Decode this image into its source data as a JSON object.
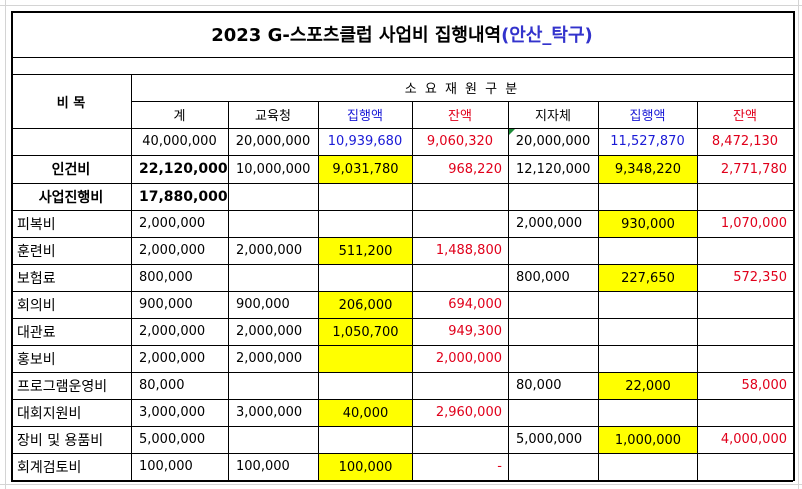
{
  "title": {
    "main": "2023 G-스포츠클럽 사업비 집행내역",
    "accent": "(안산_탁구)"
  },
  "header": {
    "item_label": "비 목",
    "group_label": "소 요 재 원 구 분",
    "columns": [
      "계",
      "교육청",
      "집행액",
      "잔액",
      "지자체",
      "집행액",
      "잔액"
    ]
  },
  "totals": [
    "40,000,000",
    "20,000,000",
    "10,939,680",
    "9,060,320",
    "20,000,000",
    "11,527,870",
    "8,472,130"
  ],
  "rows": [
    {
      "label": "인건비",
      "values": [
        "22,120,000",
        "10,000,000",
        "9,031,780",
        "968,220",
        "12,120,000",
        "9,348,220",
        "2,771,780"
      ]
    },
    {
      "label": "사업진행비",
      "values": [
        "17,880,000",
        "",
        "",
        "",
        "",
        "",
        ""
      ]
    },
    {
      "label": "피복비",
      "values": [
        "2,000,000",
        "",
        "",
        "",
        "2,000,000",
        "930,000",
        "1,070,000"
      ]
    },
    {
      "label": "훈련비",
      "values": [
        "2,000,000",
        "2,000,000",
        "511,200",
        "1,488,800",
        "",
        "",
        ""
      ]
    },
    {
      "label": "보험료",
      "values": [
        "800,000",
        "",
        "",
        "",
        "800,000",
        "227,650",
        "572,350"
      ]
    },
    {
      "label": "회의비",
      "values": [
        "900,000",
        "900,000",
        "206,000",
        "694,000",
        "",
        "",
        ""
      ]
    },
    {
      "label": "대관료",
      "values": [
        "2,000,000",
        "2,000,000",
        "1,050,700",
        "949,300",
        "",
        "",
        ""
      ]
    },
    {
      "label": "홍보비",
      "values": [
        "2,000,000",
        "2,000,000",
        "",
        "2,000,000",
        "",
        "",
        ""
      ]
    },
    {
      "label": "프로그램운영비",
      "values": [
        "80,000",
        "",
        "",
        "",
        "80,000",
        "22,000",
        "58,000"
      ]
    },
    {
      "label": "대회지원비",
      "values": [
        "3,000,000",
        "3,000,000",
        "40,000",
        "2,960,000",
        "",
        "",
        ""
      ]
    },
    {
      "label": "장비 및 용품비",
      "values": [
        "5,000,000",
        "",
        "",
        "",
        "5,000,000",
        "1,000,000",
        "4,000,000"
      ]
    },
    {
      "label": "회계검토비",
      "values": [
        "100,000",
        "100,000",
        "100,000",
        "-",
        "",
        "",
        ""
      ]
    }
  ],
  "colors": {
    "highlight": "#ffff00",
    "blue_text": "#1a1ad6",
    "red_text": "#e0001b",
    "title_accent": "#3333cc"
  }
}
